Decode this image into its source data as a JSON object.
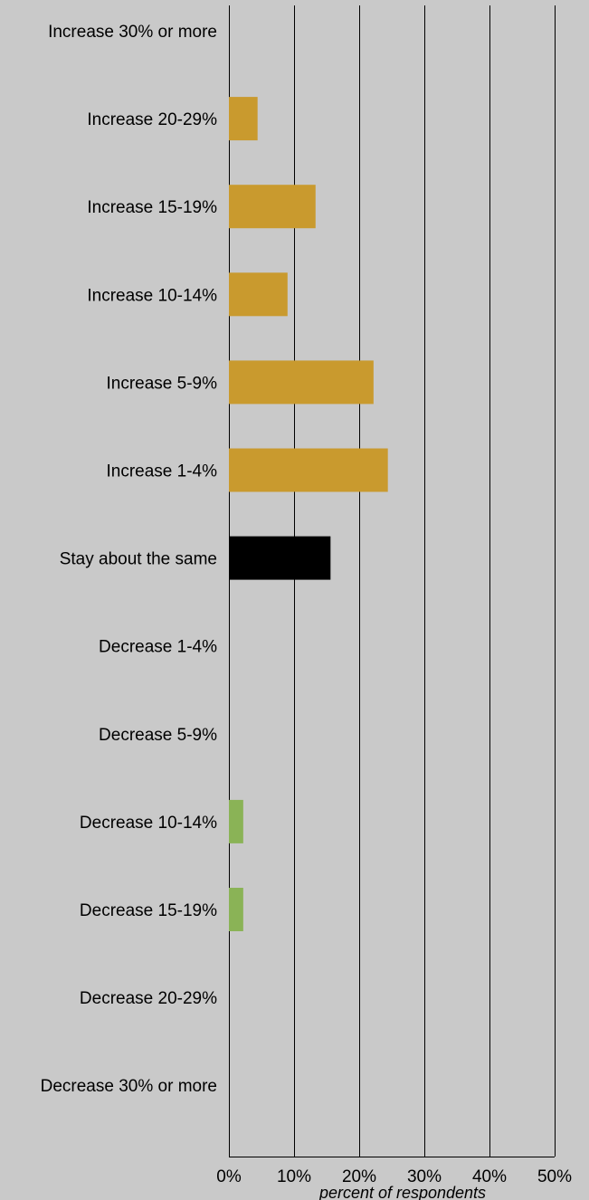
{
  "chart_data": {
    "type": "bar",
    "orientation": "horizontal",
    "categories": [
      "Increase 30% or more",
      "Increase 20-29%",
      "Increase 15-19%",
      "Increase 10-14%",
      "Increase 5-9%",
      "Increase 1-4%",
      "Stay about the same",
      "Decrease 1-4%",
      "Decrease 5-9%",
      "Decrease 10-14%",
      "Decrease 15-19%",
      "Decrease 20-29%",
      "Decrease 30% or more"
    ],
    "values": [
      0,
      4.4,
      13.3,
      9.0,
      22.2,
      24.4,
      15.6,
      0,
      0,
      2.2,
      2.2,
      0,
      0
    ],
    "bar_colors": [
      "#c99a2e",
      "#c99a2e",
      "#c99a2e",
      "#c99a2e",
      "#c99a2e",
      "#c99a2e",
      "#000000",
      "#8ab356",
      "#8ab356",
      "#8ab356",
      "#8ab356",
      "#8ab356",
      "#8ab356"
    ],
    "xlim": [
      0,
      50
    ],
    "x_ticks": [
      0,
      10,
      20,
      30,
      40,
      50
    ],
    "x_tick_labels": [
      "0%",
      "10%",
      "20%",
      "30%",
      "40%",
      "50%"
    ],
    "xlabel": "percent of respondents",
    "ylabel": "",
    "title": "",
    "grid": true,
    "legend": "none"
  },
  "colors": {
    "background": "#c9c9c9",
    "increase": "#c99a2e",
    "same": "#000000",
    "decrease": "#8ab356"
  }
}
